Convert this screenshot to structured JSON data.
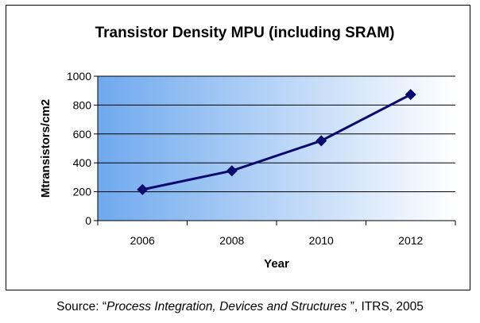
{
  "chart_data": {
    "type": "line",
    "title": "Transistor Density MPU (including SRAM)",
    "xlabel": "Year",
    "ylabel": "Mtransistors/cm2",
    "categories": [
      "2006",
      "2008",
      "2010",
      "2012"
    ],
    "series": [
      {
        "name": "Transistor Density",
        "values": [
          215,
          345,
          553,
          873
        ]
      }
    ],
    "ylim": [
      0,
      1000
    ],
    "yticks": [
      0,
      200,
      400,
      600,
      800,
      1000
    ],
    "grid": true,
    "legend": "none",
    "colors": {
      "line": "#0a0a6e",
      "marker": "#0a0a6e",
      "gradient_start": "#6fa9ee",
      "gradient_end": "#ffffff"
    }
  },
  "source": {
    "prefix": "Source: “",
    "title": "Process Integration, Devices and Structures ",
    "suffix": "”, ITRS, 2005"
  }
}
